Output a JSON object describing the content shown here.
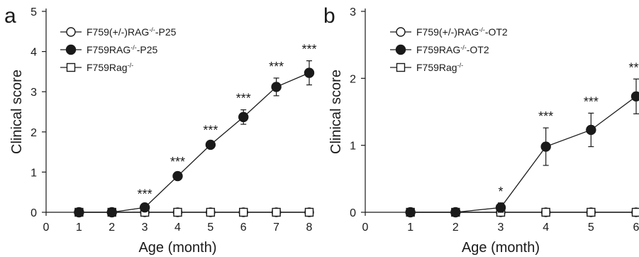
{
  "chart_data": [
    {
      "panel": "a",
      "type": "line",
      "xlabel": "Age (month)",
      "ylabel": "Clinical score",
      "xlim": [
        0,
        8
      ],
      "ylim": [
        0,
        5
      ],
      "xticks": [
        0,
        1,
        2,
        3,
        4,
        5,
        6,
        7,
        8
      ],
      "yticks": [
        0,
        1,
        2,
        3,
        4,
        5
      ],
      "x": [
        1,
        2,
        3,
        4,
        5,
        6,
        7,
        8
      ],
      "legend_position": "top-left",
      "series": [
        {
          "name": "F759(+/-)RAG-/--P25",
          "marker": "open-circle",
          "values": [
            0,
            0,
            0,
            0,
            0,
            0,
            0,
            0
          ]
        },
        {
          "name": "F759RAG-/--P25",
          "marker": "filled-circle",
          "values": [
            0,
            0,
            0.12,
            0.9,
            1.68,
            2.37,
            3.12,
            3.47
          ],
          "errors": [
            0,
            0,
            0.05,
            0.07,
            0.08,
            0.18,
            0.22,
            0.3
          ]
        },
        {
          "name": "F759Rag-/-",
          "marker": "open-square",
          "values": [
            0,
            0,
            0,
            0,
            0,
            0,
            0,
            0
          ]
        }
      ],
      "annotations": [
        {
          "x": 3,
          "text": "***"
        },
        {
          "x": 4,
          "text": "***"
        },
        {
          "x": 5,
          "text": "***"
        },
        {
          "x": 6,
          "text": "***"
        },
        {
          "x": 7,
          "text": "***"
        },
        {
          "x": 8,
          "text": "***"
        }
      ]
    },
    {
      "panel": "b",
      "type": "line",
      "xlabel": "Age (month)",
      "ylabel": "Clinical score",
      "xlim": [
        0,
        6
      ],
      "ylim": [
        0,
        3
      ],
      "xticks": [
        0,
        1,
        2,
        3,
        4,
        5,
        6
      ],
      "yticks": [
        0,
        1,
        2,
        3
      ],
      "x": [
        1,
        2,
        3,
        4,
        5,
        6
      ],
      "legend_position": "top-left",
      "series": [
        {
          "name": "F759(+/-)RAG-/--OT2",
          "marker": "open-circle",
          "values": [
            0,
            0,
            0,
            0,
            0,
            0
          ]
        },
        {
          "name": "F759RAG-/--OT2",
          "marker": "filled-circle",
          "values": [
            0,
            0,
            0.07,
            0.98,
            1.23,
            1.73
          ],
          "errors": [
            0,
            0,
            0.07,
            0.28,
            0.25,
            0.26
          ]
        },
        {
          "name": "F759Rag-/-",
          "marker": "open-square",
          "values": [
            0,
            0,
            0,
            0,
            0,
            0
          ]
        }
      ],
      "annotations": [
        {
          "x": 3,
          "text": "*"
        },
        {
          "x": 4,
          "text": "***"
        },
        {
          "x": 5,
          "text": "***"
        },
        {
          "x": 6,
          "text": "***"
        }
      ]
    }
  ]
}
